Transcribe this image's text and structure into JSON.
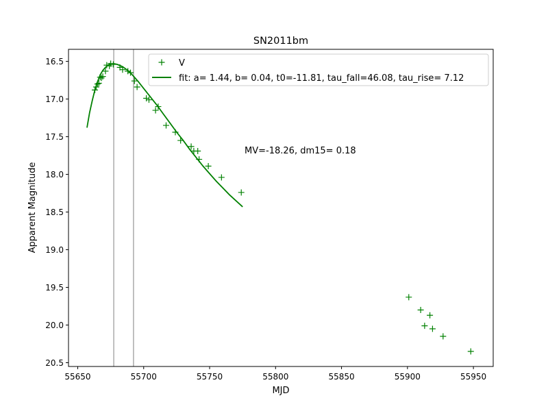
{
  "chart_data": {
    "type": "scatter",
    "title": "SN2011bm",
    "xlabel": "MJD",
    "ylabel": "Apparent Magnitude",
    "xlim": [
      55643,
      55965
    ],
    "ylim": [
      20.55,
      16.34
    ],
    "y_axis_inverted": true,
    "grid": false,
    "legend_position": "top-right",
    "x_ticks": [
      55650,
      55700,
      55750,
      55800,
      55850,
      55900,
      55950
    ],
    "x_tick_labels": [
      "55650",
      "55700",
      "55750",
      "55800",
      "55850",
      "55900",
      "55950"
    ],
    "y_ticks": [
      16.5,
      17.0,
      17.5,
      18.0,
      18.5,
      19.0,
      19.5,
      20.0,
      20.5
    ],
    "y_tick_labels": [
      "16.5",
      "17.0",
      "17.5",
      "18.0",
      "18.5",
      "19.0",
      "19.5",
      "20.0",
      "20.5"
    ],
    "vertical_lines": [
      55677.3,
      55692.3
    ],
    "annotation": {
      "text": "MV=-18.26, dm15= 0.18",
      "x": 55776.5,
      "y": 17.68
    },
    "series": [
      {
        "name": "V",
        "kind": "points",
        "marker": "+",
        "color": "#008000",
        "points": [
          [
            55663,
            16.88
          ],
          [
            55664,
            16.84
          ],
          [
            55665,
            16.8
          ],
          [
            55666,
            16.79
          ],
          [
            55667,
            16.71
          ],
          [
            55668,
            16.72
          ],
          [
            55669,
            16.7
          ],
          [
            55671,
            16.63
          ],
          [
            55672,
            16.55
          ],
          [
            55674,
            16.56
          ],
          [
            55675,
            16.53
          ],
          [
            55677,
            16.54
          ],
          [
            55682,
            16.58
          ],
          [
            55684,
            16.61
          ],
          [
            55688,
            16.63
          ],
          [
            55690,
            16.65
          ],
          [
            55693,
            16.76
          ],
          [
            55695,
            16.84
          ],
          [
            55702,
            16.99
          ],
          [
            55704,
            17.01
          ],
          [
            55709,
            17.15
          ],
          [
            55711,
            17.1
          ],
          [
            55717,
            17.35
          ],
          [
            55724,
            17.44
          ],
          [
            55728,
            17.55
          ],
          [
            55736,
            17.63
          ],
          [
            55738,
            17.69
          ],
          [
            55741,
            17.69
          ],
          [
            55742,
            17.8
          ],
          [
            55749,
            17.89
          ],
          [
            55759,
            18.04
          ],
          [
            55774,
            18.24
          ],
          [
            55901,
            19.63
          ],
          [
            55910,
            19.8
          ],
          [
            55913,
            20.01
          ],
          [
            55917,
            19.87
          ],
          [
            55919,
            20.05
          ],
          [
            55927,
            20.15
          ],
          [
            55948,
            20.35
          ]
        ]
      },
      {
        "name": "fit: a= 1.44, b= 0.04, t0=-11.81, tau_fall=46.08, tau_rise= 7.12",
        "kind": "line",
        "color": "#008000",
        "points": [
          [
            55657,
            17.38
          ],
          [
            55659,
            17.18
          ],
          [
            55661,
            17.02
          ],
          [
            55663,
            16.88
          ],
          [
            55665,
            16.77
          ],
          [
            55667,
            16.68
          ],
          [
            55669,
            16.62
          ],
          [
            55671,
            16.58
          ],
          [
            55673,
            16.55
          ],
          [
            55675,
            16.54
          ],
          [
            55677.3,
            16.53
          ],
          [
            55680,
            16.54
          ],
          [
            55684,
            16.57
          ],
          [
            55688,
            16.62
          ],
          [
            55692,
            16.69
          ],
          [
            55696,
            16.77
          ],
          [
            55700,
            16.86
          ],
          [
            55705,
            16.97
          ],
          [
            55710,
            17.08
          ],
          [
            55715,
            17.2
          ],
          [
            55720,
            17.32
          ],
          [
            55725,
            17.44
          ],
          [
            55730,
            17.55
          ],
          [
            55735,
            17.67
          ],
          [
            55740,
            17.78
          ],
          [
            55745,
            17.89
          ],
          [
            55750,
            17.99
          ],
          [
            55755,
            18.09
          ],
          [
            55760,
            18.18
          ],
          [
            55765,
            18.27
          ],
          [
            55770,
            18.35
          ],
          [
            55775,
            18.43
          ]
        ]
      }
    ]
  }
}
